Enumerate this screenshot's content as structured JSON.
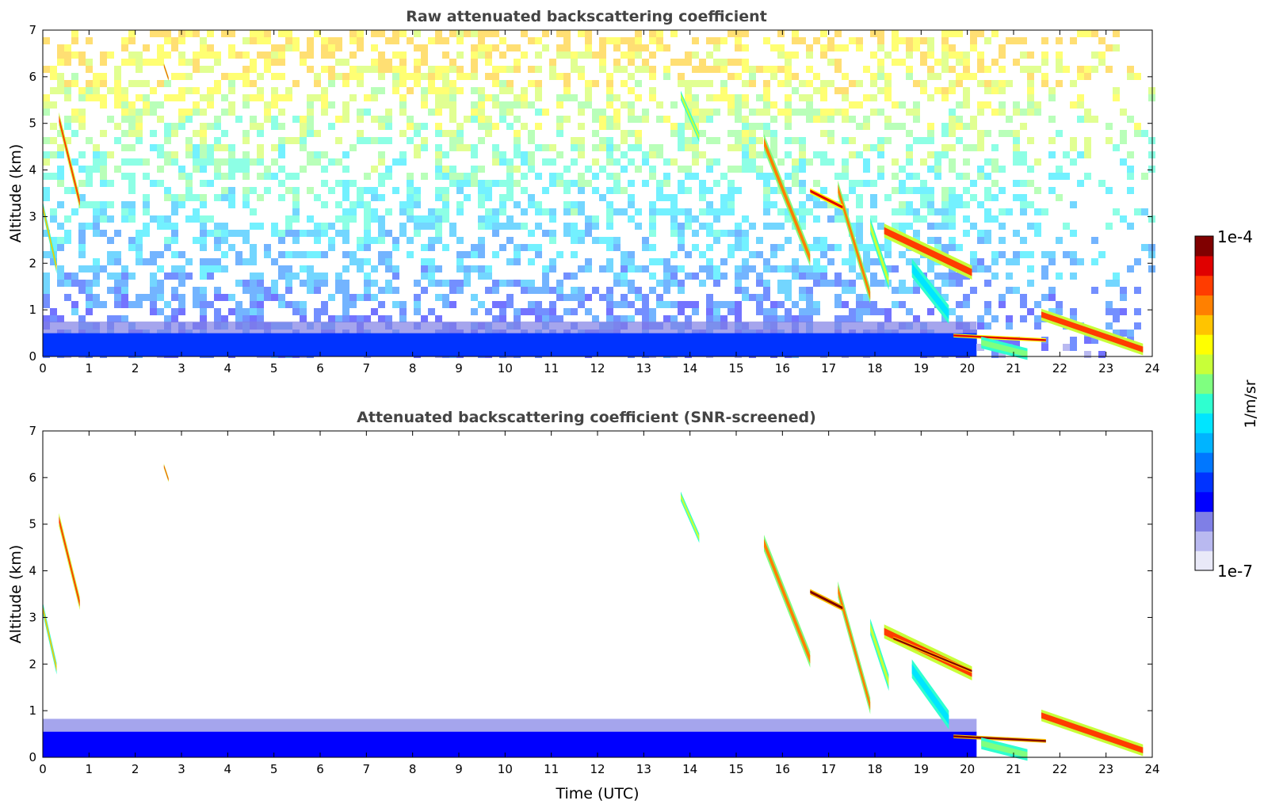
{
  "chart_data": [
    {
      "type": "heatmap",
      "title": "Raw attenuated backscattering coefficient",
      "xlabel": "",
      "ylabel": "Altitude (km)",
      "xlim": [
        0,
        24
      ],
      "ylim": [
        0,
        7
      ],
      "x_ticks": [
        "0",
        "1",
        "2",
        "3",
        "4",
        "5",
        "6",
        "7",
        "8",
        "9",
        "10",
        "11",
        "12",
        "13",
        "14",
        "15",
        "16",
        "17",
        "18",
        "19",
        "20",
        "21",
        "22",
        "23",
        "24"
      ],
      "y_ticks": [
        "0",
        "1",
        "2",
        "3",
        "4",
        "5",
        "6",
        "7"
      ],
      "noise_background": true,
      "features": [
        {
          "kind": "boundary_layer",
          "t0": 0,
          "t1": 20.2,
          "h0": 0,
          "h1": 0.5,
          "level": 0.22
        },
        {
          "kind": "streak",
          "t0": 0.0,
          "t1": 0.3,
          "h0": 3.2,
          "h1": 1.9,
          "width": 0.25,
          "level": 0.75
        },
        {
          "kind": "streak",
          "t0": 0.35,
          "t1": 0.8,
          "h0": 5.1,
          "h1": 3.3,
          "width": 0.28,
          "level": 0.85
        },
        {
          "kind": "streak",
          "t0": 2.62,
          "t1": 2.72,
          "h0": 6.25,
          "h1": 5.95,
          "width": 0.1,
          "level": 0.9
        },
        {
          "kind": "streak",
          "t0": 13.8,
          "t1": 14.2,
          "h0": 5.6,
          "h1": 4.7,
          "width": 0.2,
          "level": 0.6
        },
        {
          "kind": "streak",
          "t0": 15.6,
          "t1": 16.6,
          "h0": 4.6,
          "h1": 2.1,
          "width": 0.35,
          "level": 0.8
        },
        {
          "kind": "streak",
          "t0": 17.2,
          "t1": 17.9,
          "h0": 3.6,
          "h1": 1.3,
          "width": 0.35,
          "level": 0.8
        },
        {
          "kind": "streak",
          "t0": 17.9,
          "t1": 18.3,
          "h0": 2.8,
          "h1": 1.6,
          "width": 0.35,
          "level": 0.6
        },
        {
          "kind": "streak",
          "t0": 16.6,
          "t1": 17.3,
          "h0": 3.55,
          "h1": 3.2,
          "width": 0.12,
          "level": 0.95
        },
        {
          "kind": "streak",
          "t0": 18.2,
          "t1": 20.1,
          "h0": 2.7,
          "h1": 1.8,
          "width": 0.3,
          "level": 0.9
        },
        {
          "kind": "streak",
          "t0": 18.8,
          "t1": 19.6,
          "h0": 1.9,
          "h1": 0.9,
          "width": 0.4,
          "level": 0.45
        },
        {
          "kind": "streak",
          "t0": 19.7,
          "t1": 21.7,
          "h0": 0.45,
          "h1": 0.35,
          "width": 0.08,
          "level": 0.95
        },
        {
          "kind": "streak",
          "t0": 20.3,
          "t1": 21.3,
          "h0": 0.3,
          "h1": 0.05,
          "width": 0.25,
          "level": 0.55
        },
        {
          "kind": "streak",
          "t0": 21.6,
          "t1": 23.8,
          "h0": 0.9,
          "h1": 0.15,
          "width": 0.25,
          "level": 0.85
        }
      ]
    },
    {
      "type": "heatmap",
      "title": "Attenuated backscattering coefficient (SNR-screened)",
      "xlabel": "Time (UTC)",
      "ylabel": "Altitude (km)",
      "xlim": [
        0,
        24
      ],
      "ylim": [
        0,
        7
      ],
      "x_ticks": [
        "0",
        "1",
        "2",
        "3",
        "4",
        "5",
        "6",
        "7",
        "8",
        "9",
        "10",
        "11",
        "12",
        "13",
        "14",
        "15",
        "16",
        "17",
        "18",
        "19",
        "20",
        "21",
        "22",
        "23",
        "24"
      ],
      "y_ticks": [
        "0",
        "1",
        "2",
        "3",
        "4",
        "5",
        "6",
        "7"
      ],
      "noise_background": false,
      "features": [
        {
          "kind": "boundary_layer",
          "t0": 0,
          "t1": 20.2,
          "h0": 0,
          "h1": 0.55,
          "level": 0.2
        },
        {
          "kind": "streak",
          "t0": 0.0,
          "t1": 0.3,
          "h0": 3.2,
          "h1": 1.9,
          "width": 0.25,
          "level": 0.75
        },
        {
          "kind": "streak",
          "t0": 0.35,
          "t1": 0.8,
          "h0": 5.1,
          "h1": 3.3,
          "width": 0.28,
          "level": 0.85
        },
        {
          "kind": "streak",
          "t0": 2.62,
          "t1": 2.72,
          "h0": 6.25,
          "h1": 5.95,
          "width": 0.1,
          "level": 0.9
        },
        {
          "kind": "streak",
          "t0": 13.8,
          "t1": 14.2,
          "h0": 5.6,
          "h1": 4.7,
          "width": 0.2,
          "level": 0.6
        },
        {
          "kind": "streak",
          "t0": 15.6,
          "t1": 16.6,
          "h0": 4.6,
          "h1": 2.1,
          "width": 0.35,
          "level": 0.8
        },
        {
          "kind": "streak",
          "t0": 17.2,
          "t1": 17.9,
          "h0": 3.6,
          "h1": 1.1,
          "width": 0.35,
          "level": 0.8
        },
        {
          "kind": "streak",
          "t0": 17.9,
          "t1": 18.3,
          "h0": 2.8,
          "h1": 1.6,
          "width": 0.35,
          "level": 0.6
        },
        {
          "kind": "streak",
          "t0": 16.6,
          "t1": 17.3,
          "h0": 3.55,
          "h1": 3.2,
          "width": 0.12,
          "level": 1.0
        },
        {
          "kind": "streak",
          "t0": 18.2,
          "t1": 20.1,
          "h0": 2.7,
          "h1": 1.8,
          "width": 0.3,
          "level": 0.9
        },
        {
          "kind": "streak",
          "t0": 18.4,
          "t1": 20.1,
          "h0": 2.55,
          "h1": 1.85,
          "width": 0.08,
          "level": 1.0
        },
        {
          "kind": "streak",
          "t0": 18.8,
          "t1": 19.6,
          "h0": 1.9,
          "h1": 0.8,
          "width": 0.4,
          "level": 0.45
        },
        {
          "kind": "streak",
          "t0": 19.7,
          "t1": 21.7,
          "h0": 0.45,
          "h1": 0.35,
          "width": 0.08,
          "level": 1.0
        },
        {
          "kind": "streak",
          "t0": 20.3,
          "t1": 21.3,
          "h0": 0.3,
          "h1": 0.05,
          "width": 0.25,
          "level": 0.55
        },
        {
          "kind": "streak",
          "t0": 21.6,
          "t1": 23.8,
          "h0": 0.9,
          "h1": 0.15,
          "width": 0.25,
          "level": 0.85
        }
      ]
    }
  ],
  "colorbar": {
    "label": "1/m/sr",
    "max_label": "1e-4",
    "min_label": "1e-7",
    "scale": "log",
    "range": [
      1e-07,
      0.0001
    ],
    "colormap": "jet",
    "colors": [
      "#e9e9f8",
      "#b9b9f0",
      "#7f7fe6",
      "#0000ff",
      "#0033ff",
      "#0077ff",
      "#00b4ff",
      "#00e5ff",
      "#2fffd0",
      "#7fff80",
      "#c8ff38",
      "#ffff00",
      "#ffc400",
      "#ff8000",
      "#ff3c00",
      "#e00000",
      "#800000"
    ]
  }
}
